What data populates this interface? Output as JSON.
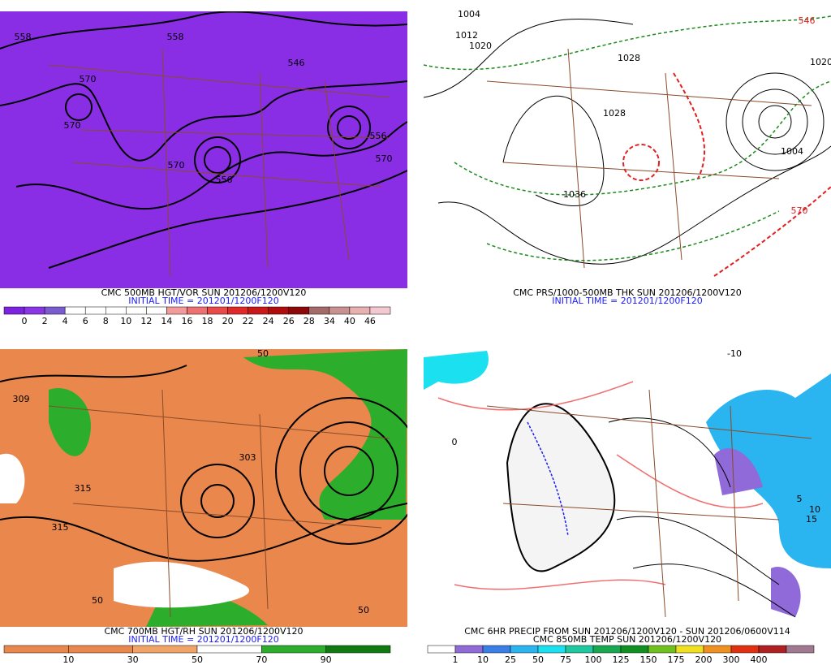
{
  "panels": [
    {
      "caption": [
        "CMC 500MB HGT/VOR SUN 201206/1200V120",
        "INITIAL TIME = 201201/1200F120"
      ],
      "background": "#8a2ee6",
      "contour_labels": [
        "558",
        "558",
        "546",
        "570",
        "570",
        "570",
        "556",
        "556",
        "570"
      ],
      "colorbar": {
        "colors": [
          "#7e22e2",
          "#8a36e6",
          "#7a5cd0",
          "#ffffff",
          "#ffffff",
          "#ffffff",
          "#ffffff",
          "#ffffff",
          "#f49a9a",
          "#ee7070",
          "#e84a4a",
          "#e02a2a",
          "#c81818",
          "#b00c0c",
          "#8c0808",
          "#a46a6a",
          "#c89090",
          "#e8b0b0",
          "#f4c8d0"
        ],
        "labels": [
          "0",
          "2",
          "4",
          "6",
          "8",
          "10",
          "12",
          "14",
          "16",
          "18",
          "20",
          "22",
          "24",
          "26",
          "28",
          "34",
          "40",
          "46"
        ]
      }
    },
    {
      "caption": [
        "CMC PRS/1000-500MB THK SUN 201206/1200V120",
        "INITIAL TIME = 201201/1200F120"
      ],
      "background": "#ffffff",
      "contour_labels": [
        "1004",
        "1012",
        "1020",
        "1028",
        "1036",
        "1028",
        "1020",
        "1004",
        "570",
        "546"
      ],
      "colorbar": {
        "colors": [],
        "labels": []
      }
    },
    {
      "caption": [
        "CMC 700MB HGT/RH SUN 201206/1200V120",
        "INITIAL TIME = 201201/1200F120"
      ],
      "background": "#e9874c",
      "contour_labels": [
        "50",
        "309",
        "315",
        "303",
        "50",
        "315",
        "50"
      ],
      "colorbar": {
        "colors": [
          "#e9874c",
          "#e9874c",
          "#f0a468",
          "#ffffff",
          "#2cae2c",
          "#107a10"
        ],
        "labels": [
          "10",
          "30",
          "50",
          "70",
          "90"
        ]
      }
    },
    {
      "caption": [
        "CMC 6HR PRECIP FROM SUN 201206/1200V120 - SUN 201206/0600V114",
        "CMC 850MB TEMP SUN 201206/1200V120"
      ],
      "background": "#ffffff",
      "contour_labels": [
        "-10",
        "0",
        "10",
        "5",
        "15"
      ],
      "colorbar": {
        "colors": [
          "#ffffff",
          "#8f6ad8",
          "#3a7ee8",
          "#2ab4f0",
          "#1ae0f0",
          "#20c8a0",
          "#18a850",
          "#109020",
          "#70c020",
          "#f0e020",
          "#f09020",
          "#e03010",
          "#b02020",
          "#a07890"
        ],
        "labels": [
          "1",
          "10",
          "25",
          "50",
          "75",
          "100",
          "125",
          "150",
          "175",
          "200",
          "300",
          "400"
        ]
      }
    }
  ]
}
